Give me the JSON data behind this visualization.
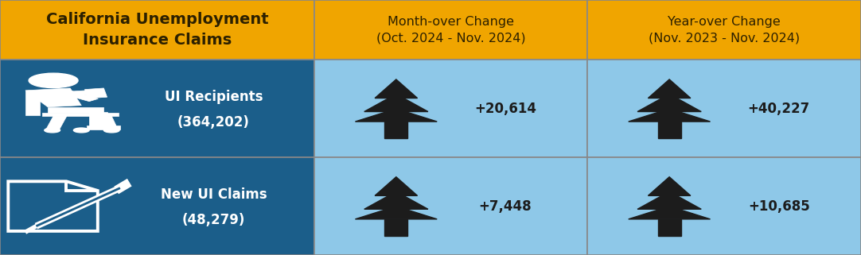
{
  "title": "California Unemployment\nInsurance Claims",
  "col2_header": "Month-over Change\n(Oct. 2024 - Nov. 2024)",
  "col3_header": "Year-over Change\n(Nov. 2023 - Nov. 2024)",
  "row1_label": "UI Recipients",
  "row1_value": "(364,202)",
  "row2_label": "New UI Claims",
  "row2_value": "(48,279)",
  "row1_col2_change": "+20,614",
  "row1_col3_change": "+40,227",
  "row2_col2_change": "+7,448",
  "row2_col3_change": "+10,685",
  "header_bg": "#F0A500",
  "header_text": "#2C2000",
  "left_col_bg": "#1B5E8A",
  "left_col_text": "#FFFFFF",
  "data_cell_bg": "#8EC8E8",
  "arrow_color": "#1C1C1C",
  "change_text_color": "#1C1C1C",
  "border_color": "#888888",
  "figsize": [
    10.82,
    3.21
  ],
  "dpi": 100
}
